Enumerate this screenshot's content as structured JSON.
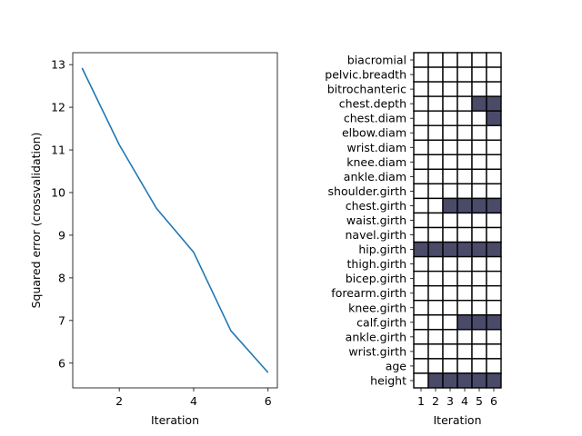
{
  "chart_data": [
    {
      "type": "line",
      "xlabel": "Iteration",
      "ylabel": "Squared error (crossvalidation)",
      "x": [
        1,
        2,
        3,
        4,
        5,
        6
      ],
      "series": [
        {
          "values": [
            12.92,
            11.12,
            9.63,
            8.6,
            6.76,
            5.78
          ],
          "color": "#1f77b4"
        }
      ],
      "xlim": [
        0.75,
        6.25
      ],
      "ylim": [
        5.42,
        13.28
      ],
      "xticks": [
        2,
        4,
        6
      ],
      "yticks": [
        6,
        7,
        8,
        9,
        10,
        11,
        12,
        13
      ],
      "grid": false
    },
    {
      "type": "heatmap",
      "xlabel": "Iteration",
      "x": [
        1,
        2,
        3,
        4,
        5,
        6
      ],
      "rows": [
        "biacromial",
        "pelvic.breadth",
        "bitrochanteric",
        "chest.depth",
        "chest.diam",
        "elbow.diam",
        "wrist.diam",
        "knee.diam",
        "ankle.diam",
        "shoulder.girth",
        "chest.girth",
        "waist.girth",
        "navel.girth",
        "hip.girth",
        "thigh.girth",
        "bicep.girth",
        "forearm.girth",
        "knee.girth",
        "calf.girth",
        "ankle.girth",
        "wrist.girth",
        "age",
        "height"
      ],
      "selected": [
        [
          0,
          0,
          0,
          0,
          0,
          0
        ],
        [
          0,
          0,
          0,
          0,
          0,
          0
        ],
        [
          0,
          0,
          0,
          0,
          0,
          0
        ],
        [
          0,
          0,
          0,
          0,
          1,
          1
        ],
        [
          0,
          0,
          0,
          0,
          0,
          1
        ],
        [
          0,
          0,
          0,
          0,
          0,
          0
        ],
        [
          0,
          0,
          0,
          0,
          0,
          0
        ],
        [
          0,
          0,
          0,
          0,
          0,
          0
        ],
        [
          0,
          0,
          0,
          0,
          0,
          0
        ],
        [
          0,
          0,
          0,
          0,
          0,
          0
        ],
        [
          0,
          0,
          1,
          1,
          1,
          1
        ],
        [
          0,
          0,
          0,
          0,
          0,
          0
        ],
        [
          0,
          0,
          0,
          0,
          0,
          0
        ],
        [
          1,
          1,
          1,
          1,
          1,
          1
        ],
        [
          0,
          0,
          0,
          0,
          0,
          0
        ],
        [
          0,
          0,
          0,
          0,
          0,
          0
        ],
        [
          0,
          0,
          0,
          0,
          0,
          0
        ],
        [
          0,
          0,
          0,
          0,
          0,
          0
        ],
        [
          0,
          0,
          0,
          1,
          1,
          1
        ],
        [
          0,
          0,
          0,
          0,
          0,
          0
        ],
        [
          0,
          0,
          0,
          0,
          0,
          0
        ],
        [
          0,
          0,
          0,
          0,
          0,
          0
        ],
        [
          0,
          1,
          1,
          1,
          1,
          1
        ]
      ],
      "colors": {
        "selected": "#4a4a69",
        "unselected": "#ffffff"
      },
      "grid": true
    }
  ]
}
